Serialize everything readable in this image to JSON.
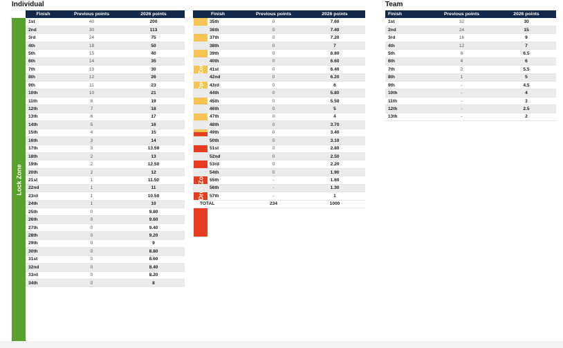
{
  "individual_title": "Individual",
  "team_title": "Team",
  "headers": {
    "finish": "Finish",
    "previous": "Previous points",
    "new": "2026 points"
  },
  "zones": {
    "lock": "Lock Zone",
    "open": "Open Zone",
    "drop": "Drop Zone"
  },
  "colors": {
    "header": "#13294b",
    "lock": "#58a12d",
    "open": "#f5c452",
    "drop": "#e63c1f"
  },
  "individual_left": [
    [
      "1st",
      "40",
      "200"
    ],
    [
      "2nd",
      "30",
      "113"
    ],
    [
      "3rd",
      "24",
      "75"
    ],
    [
      "4th",
      "18",
      "50"
    ],
    [
      "5th",
      "15",
      "40"
    ],
    [
      "6th",
      "14",
      "35"
    ],
    [
      "7th",
      "13",
      "30"
    ],
    [
      "8th",
      "12",
      "26"
    ],
    [
      "9th",
      "11",
      "23"
    ],
    [
      "10th",
      "10",
      "21"
    ],
    [
      "11th",
      "8",
      "19"
    ],
    [
      "12th",
      "7",
      "18"
    ],
    [
      "13th",
      "6",
      "17"
    ],
    [
      "14th",
      "5",
      "16"
    ],
    [
      "15th",
      "4",
      "15"
    ],
    [
      "16th",
      "3",
      "14"
    ],
    [
      "17th",
      "3",
      "13.50"
    ],
    [
      "18th",
      "2",
      "13"
    ],
    [
      "19th",
      "2",
      "12.50"
    ],
    [
      "20th",
      "2",
      "12"
    ],
    [
      "21st",
      "1",
      "11.50"
    ],
    [
      "22nd",
      "1",
      "11"
    ],
    [
      "23rd",
      "1",
      "10.50"
    ],
    [
      "24th",
      "1",
      "10"
    ],
    [
      "25th",
      "0",
      "9.80"
    ],
    [
      "26th",
      "0",
      "9.60"
    ],
    [
      "27th",
      "0",
      "9.40"
    ],
    [
      "28th",
      "0",
      "9.20"
    ],
    [
      "29th",
      "0",
      "9"
    ],
    [
      "30th",
      "0",
      "8.80"
    ],
    [
      "31st",
      "0",
      "8.60"
    ],
    [
      "32nd",
      "0",
      "8.40"
    ],
    [
      "33rd",
      "0",
      "8.20"
    ],
    [
      "34th",
      "0",
      "8"
    ]
  ],
  "individual_middle": [
    [
      "35th",
      "0",
      "7.60"
    ],
    [
      "36th",
      "0",
      "7.40"
    ],
    [
      "37th",
      "0",
      "7.20"
    ],
    [
      "38th",
      "0",
      "7"
    ],
    [
      "39th",
      "0",
      "6.80"
    ],
    [
      "40th",
      "0",
      "6.60"
    ],
    [
      "41st",
      "0",
      "6.40"
    ],
    [
      "42nd",
      "0",
      "6.20"
    ],
    [
      "43rd",
      "0",
      "6"
    ],
    [
      "44th",
      "0",
      "5.80"
    ],
    [
      "45th",
      "0",
      "5.50"
    ],
    [
      "46th",
      "0",
      "5"
    ],
    [
      "47th",
      "0",
      "4"
    ],
    [
      "48th",
      "0",
      "3.70"
    ],
    [
      "49th",
      "0",
      "3.40"
    ],
    [
      "50th",
      "0",
      "3.10"
    ],
    [
      "51st",
      "0",
      "2.80"
    ],
    [
      "52nd",
      "0",
      "2.50"
    ],
    [
      "53rd",
      "0",
      "2.20"
    ],
    [
      "54th",
      "0",
      "1.90"
    ],
    [
      "55th",
      "-",
      "1.60"
    ],
    [
      "56th",
      "-",
      "1.30"
    ],
    [
      "57th",
      "-",
      "1"
    ]
  ],
  "total": {
    "label": "TOTAL",
    "previous": "234",
    "new": "1000"
  },
  "team": [
    [
      "1st",
      "32",
      "30"
    ],
    [
      "2nd",
      "24",
      "15"
    ],
    [
      "3rd",
      "16",
      "9"
    ],
    [
      "4th",
      "12",
      "7"
    ],
    [
      "5th",
      "8",
      "6.5"
    ],
    [
      "6th",
      "4",
      "6"
    ],
    [
      "7th",
      "2",
      "5.5"
    ],
    [
      "8th",
      "1",
      "5"
    ],
    [
      "9th",
      "-",
      "4.5"
    ],
    [
      "10th",
      "-",
      "4"
    ],
    [
      "11th",
      "-",
      "3"
    ],
    [
      "12th",
      "-",
      "2.5"
    ],
    [
      "13th",
      "-",
      "2"
    ]
  ]
}
